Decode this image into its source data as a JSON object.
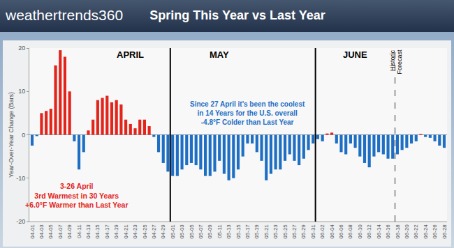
{
  "chart_data": {
    "type": "bar",
    "title": "Spring This Year vs Last Year",
    "logo": "weathertrends360",
    "y_label": "Year-Over-Year Change (Bars)",
    "categories": [
      "04-01",
      null,
      "04-03",
      null,
      "04-05",
      null,
      "04-07",
      null,
      "04-09",
      null,
      "04-11",
      null,
      "04-13",
      null,
      "04-15",
      null,
      "04-17",
      null,
      "04-19",
      null,
      "04-21",
      null,
      "04-23",
      null,
      "04-25",
      null,
      "04-27",
      null,
      "04-29",
      null,
      "05-01",
      null,
      "05-03",
      null,
      "05-05",
      null,
      "05-07",
      null,
      "05-09",
      null,
      "05-11",
      null,
      "05-13",
      null,
      "05-15",
      null,
      "05-17",
      null,
      "05-19",
      null,
      "05-21",
      null,
      "05-23",
      null,
      "05-25",
      null,
      "05-27",
      null,
      "05-29",
      null,
      "05-31",
      null,
      "06-02",
      null,
      "06-04",
      null,
      "06-06",
      null,
      "06-08",
      null,
      "06-10",
      null,
      "06-12",
      null,
      "06-14",
      null,
      "06-16",
      null,
      "06-18",
      null,
      "06-20",
      null,
      "06-22",
      null,
      "06-24",
      null,
      "06-26",
      null,
      "06-28"
    ],
    "values": [
      -2.5,
      -0.3,
      5,
      5.5,
      6,
      16,
      19.5,
      18,
      10,
      -1.5,
      -8,
      -4,
      1,
      3.5,
      8,
      8.5,
      9,
      7.5,
      8,
      7,
      3.5,
      2.5,
      1.5,
      3.5,
      3.5,
      2,
      -0.5,
      -4,
      -6.5,
      -8.5,
      -9.5,
      -9.5,
      -8,
      -7,
      -6.5,
      -7,
      -8,
      -9.5,
      -9.5,
      -8.5,
      -6,
      -9,
      -10.5,
      -10,
      -8,
      -5,
      -2,
      -2,
      -4,
      -6,
      -10.5,
      -9,
      -8,
      -8,
      -6,
      -4.5,
      -6,
      -7,
      -5.5,
      -3.5,
      -2,
      -1,
      -1.5,
      0.3,
      0.5,
      -2,
      -4,
      -4.5,
      -2,
      -3,
      -5,
      -6.5,
      -7.5,
      -5,
      -4,
      -4.5,
      -5.5,
      -5.5,
      -4.5,
      -3.5,
      -3,
      -2,
      -1.5,
      0.2,
      -0.5,
      -0.7,
      -1.5,
      -2.5,
      -3
    ],
    "colors": [
      "#1e6fc4",
      "#1e6fc4",
      "#e3241b",
      "#e3241b",
      "#e3241b",
      "#e3241b",
      "#e3241b",
      "#e3241b",
      "#e3241b",
      "#1e6fc4",
      "#1e6fc4",
      "#1e6fc4",
      "#e3241b",
      "#e3241b",
      "#e3241b",
      "#e3241b",
      "#e3241b",
      "#e3241b",
      "#e3241b",
      "#e3241b",
      "#e3241b",
      "#e3241b",
      "#e3241b",
      "#e3241b",
      "#e3241b",
      "#e3241b",
      "#1e6fc4",
      "#1e6fc4",
      "#1e6fc4",
      "#1e6fc4",
      "#1e6fc4",
      "#1e6fc4",
      "#1e6fc4",
      "#1e6fc4",
      "#1e6fc4",
      "#1e6fc4",
      "#1e6fc4",
      "#1e6fc4",
      "#1e6fc4",
      "#1e6fc4",
      "#1e6fc4",
      "#1e6fc4",
      "#1e6fc4",
      "#1e6fc4",
      "#1e6fc4",
      "#1e6fc4",
      "#1e6fc4",
      "#1e6fc4",
      "#1e6fc4",
      "#1e6fc4",
      "#1e6fc4",
      "#1e6fc4",
      "#1e6fc4",
      "#1e6fc4",
      "#1e6fc4",
      "#1e6fc4",
      "#1e6fc4",
      "#1e6fc4",
      "#1e6fc4",
      "#1e6fc4",
      "#1e6fc4",
      "#1e6fc4",
      "#1e6fc4",
      "#e3241b",
      "#e3241b",
      "#1e6fc4",
      "#1e6fc4",
      "#1e6fc4",
      "#1e6fc4",
      "#1e6fc4",
      "#1e6fc4",
      "#1e6fc4",
      "#1e6fc4",
      "#1e6fc4",
      "#1e6fc4",
      "#1e6fc4",
      "#1e6fc4",
      "#1e6fc4",
      "#1e6fc4",
      "#1e6fc4",
      "#1e6fc4",
      "#1e6fc4",
      "#1e6fc4",
      "#e3241b",
      "#1e6fc4",
      "#1e6fc4",
      "#1e6fc4",
      "#1e6fc4",
      "#1e6fc4"
    ],
    "ylim": [
      -20,
      20
    ],
    "yticks": [
      -20,
      -10,
      0,
      10,
      20
    ],
    "grid": false,
    "annotations": [
      {
        "text": "APRIL",
        "color": "#000000"
      },
      {
        "text": "MAY",
        "color": "#000000"
      },
      {
        "text": "JUNE",
        "color": "#000000"
      },
      {
        "text": "Historic",
        "color": "#000000"
      },
      {
        "text": "Forecast",
        "color": "#000000"
      },
      {
        "lines": [
          "Since 27 April it's been the coolest",
          "in 14 Years for the U.S. overall",
          "-4.8°F Colder than Last Year"
        ],
        "color": "#1e6fc4"
      },
      {
        "lines": [
          "3-26 April",
          "3rd Warmest in 30 Years",
          "+6.0°F Warmer than Last Year"
        ],
        "color": "#e3241b"
      }
    ]
  }
}
